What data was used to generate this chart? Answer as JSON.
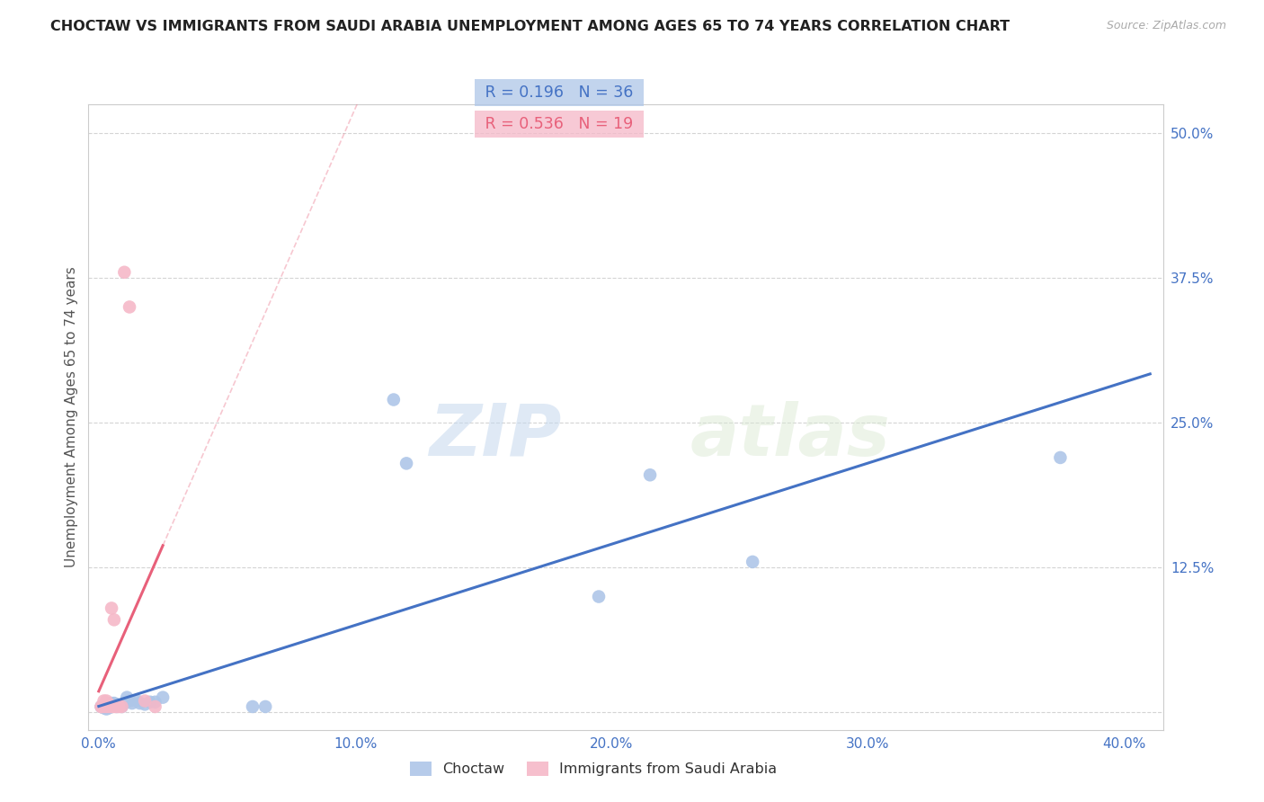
{
  "title": "CHOCTAW VS IMMIGRANTS FROM SAUDI ARABIA UNEMPLOYMENT AMONG AGES 65 TO 74 YEARS CORRELATION CHART",
  "source": "Source: ZipAtlas.com",
  "ylabel": "Unemployment Among Ages 65 to 74 years",
  "xmin": -0.004,
  "xmax": 0.415,
  "ymin": -0.015,
  "ymax": 0.525,
  "xticks": [
    0.0,
    0.1,
    0.2,
    0.3,
    0.4
  ],
  "xtick_labels": [
    "0.0%",
    "10.0%",
    "20.0%",
    "30.0%",
    "40.0%"
  ],
  "yticks": [
    0.0,
    0.125,
    0.25,
    0.375,
    0.5
  ],
  "ytick_labels": [
    "",
    "12.5%",
    "25.0%",
    "37.5%",
    "50.0%"
  ],
  "grid_color": "#d0d0d0",
  "background_color": "#ffffff",
  "watermark_zip": "ZIP",
  "watermark_atlas": "atlas",
  "choctaw_color": "#aec6e8",
  "saudi_color": "#f5b8c8",
  "choctaw_line_color": "#4472c4",
  "saudi_line_color": "#e8607a",
  "legend_R_choctaw": "R = 0.196",
  "legend_N_choctaw": "N = 36",
  "legend_R_saudi": "R = 0.536",
  "legend_N_saudi": "N = 19",
  "choctaw_x": [
    0.001,
    0.001,
    0.002,
    0.002,
    0.003,
    0.003,
    0.003,
    0.004,
    0.004,
    0.005,
    0.005,
    0.005,
    0.006,
    0.006,
    0.007,
    0.007,
    0.008,
    0.009,
    0.01,
    0.011,
    0.012,
    0.013,
    0.015,
    0.016,
    0.018,
    0.02,
    0.022,
    0.025,
    0.06,
    0.065,
    0.115,
    0.12,
    0.195,
    0.215,
    0.255,
    0.375
  ],
  "choctaw_y": [
    0.005,
    0.005,
    0.005,
    0.004,
    0.005,
    0.004,
    0.003,
    0.005,
    0.004,
    0.008,
    0.006,
    0.005,
    0.008,
    0.006,
    0.007,
    0.005,
    0.006,
    0.005,
    0.008,
    0.013,
    0.01,
    0.008,
    0.01,
    0.008,
    0.007,
    0.009,
    0.009,
    0.013,
    0.005,
    0.005,
    0.27,
    0.215,
    0.1,
    0.205,
    0.13,
    0.22
  ],
  "saudi_x": [
    0.001,
    0.001,
    0.002,
    0.002,
    0.003,
    0.003,
    0.004,
    0.004,
    0.005,
    0.005,
    0.006,
    0.006,
    0.007,
    0.008,
    0.009,
    0.01,
    0.012,
    0.018,
    0.022
  ],
  "saudi_y": [
    0.005,
    0.005,
    0.005,
    0.01,
    0.01,
    0.005,
    0.005,
    0.007,
    0.09,
    0.005,
    0.08,
    0.005,
    0.005,
    0.005,
    0.005,
    0.38,
    0.35,
    0.01,
    0.005
  ],
  "saudi_trend_x0": 0.0,
  "saudi_trend_x1": 0.025,
  "saudi_trend_dash_x1": 0.185
}
